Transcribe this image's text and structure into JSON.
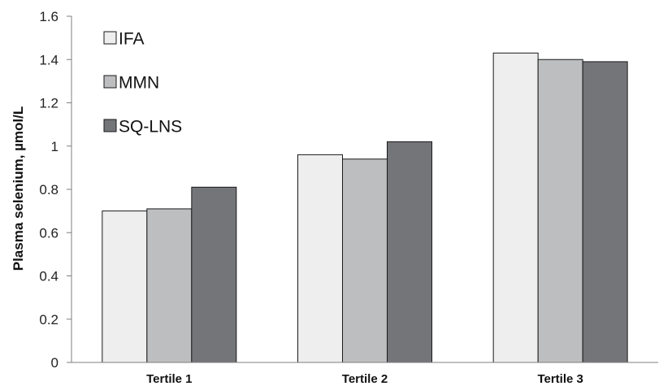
{
  "chart_data": {
    "type": "bar",
    "title": "",
    "xlabel": "",
    "ylabel": "Plasma selenium, µmol/L",
    "categories": [
      "Tertile 1",
      "Tertile 2",
      "Tertile 3"
    ],
    "series": [
      {
        "name": "IFA",
        "values": [
          0.7,
          0.96,
          1.43
        ],
        "color": "#eeeeee"
      },
      {
        "name": "MMN",
        "values": [
          0.71,
          0.94,
          1.4
        ],
        "color": "#bdbec0"
      },
      {
        "name": "SQ-LNS",
        "values": [
          0.81,
          1.02,
          1.39
        ],
        "color": "#747579"
      }
    ],
    "ylim": [
      0,
      1.6
    ],
    "yticks": [
      "0",
      "0.2",
      "0.4",
      "0.6",
      "0.8",
      "1",
      "1.2",
      "1.4",
      "1.6"
    ],
    "grid": false,
    "legend": "top-left"
  }
}
